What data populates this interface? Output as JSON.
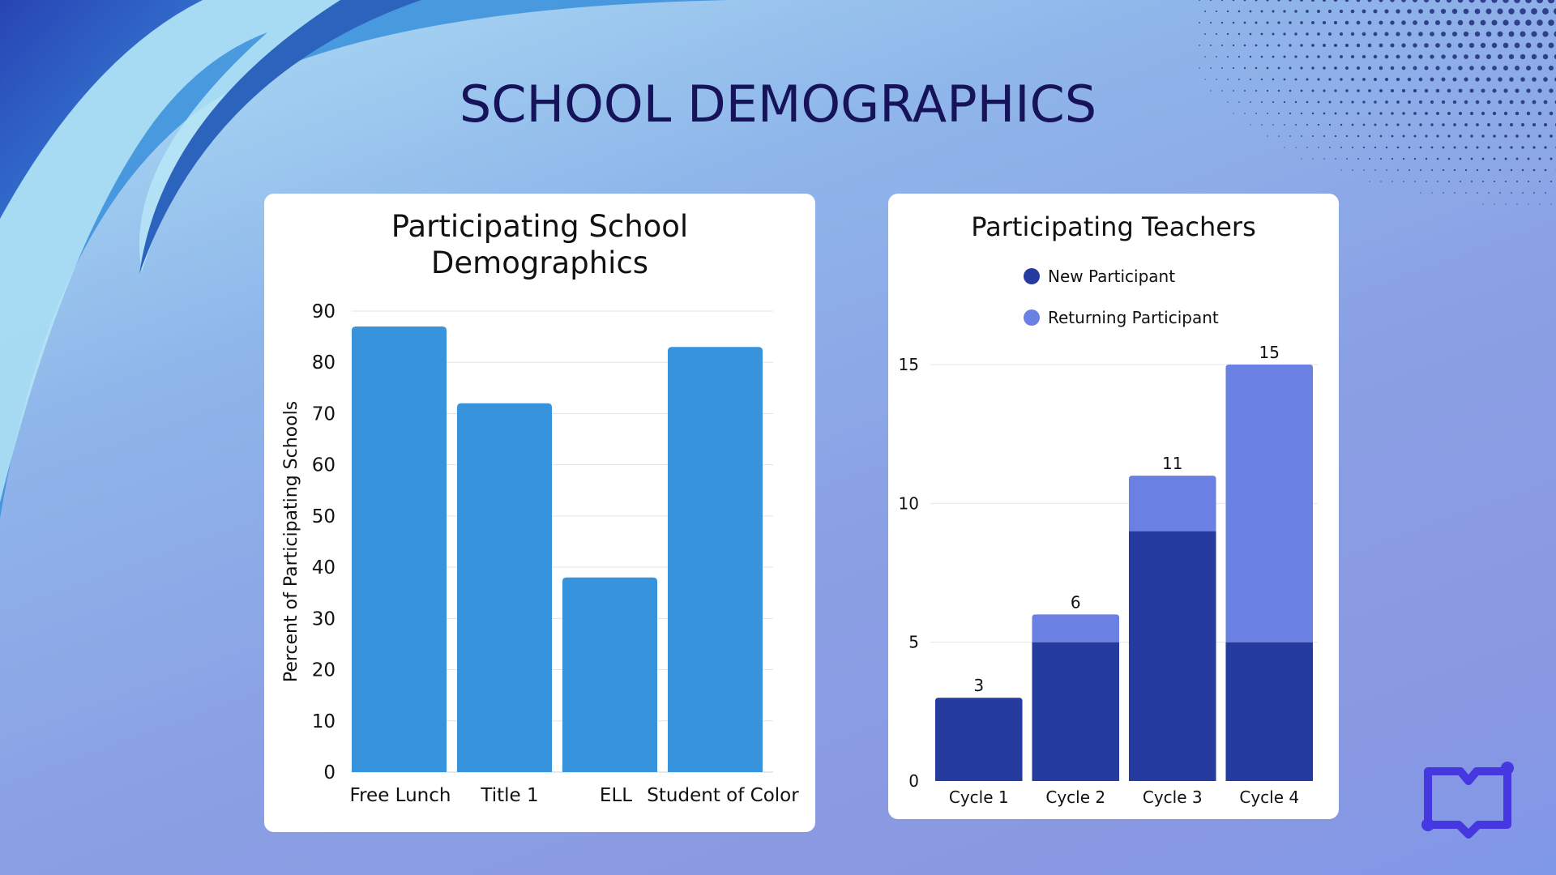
{
  "page": {
    "title": "SCHOOL DEMOGRAPHICS",
    "colors": {
      "title": "#16135a",
      "bar_primary": "#3793dc",
      "new_participant": "#253b9f",
      "returning_participant": "#6a80e2",
      "logo": "#4638e0"
    },
    "logo_icon": "open-book-icon"
  },
  "chart_data": [
    {
      "type": "bar",
      "title_lines": [
        "Participating School",
        "Demographics"
      ],
      "categories": [
        "Free Lunch",
        "Title 1",
        "ELL",
        "Student of Color"
      ],
      "values": [
        87,
        72,
        38,
        83
      ],
      "xlabel": "",
      "ylabel": "Percent of Participating Schools",
      "ylim": [
        0,
        90
      ],
      "yticks": [
        0,
        10,
        20,
        30,
        40,
        50,
        60,
        70,
        80,
        90
      ],
      "grid": true,
      "legend": "none"
    },
    {
      "type": "bar",
      "stacked": true,
      "title": "Participating Teachers",
      "categories": [
        "Cycle 1",
        "Cycle 2",
        "Cycle 3",
        "Cycle 4"
      ],
      "series": [
        {
          "name": "New Participant",
          "values": [
            3,
            5,
            9,
            5
          ]
        },
        {
          "name": "Returning Participant",
          "values": [
            0,
            1,
            2,
            10
          ]
        }
      ],
      "totals": [
        3,
        6,
        11,
        15
      ],
      "xlabel": "",
      "ylabel": "",
      "ylim": [
        0,
        15
      ],
      "yticks": [
        0,
        5,
        10,
        15
      ],
      "grid": true,
      "legend": "top-center"
    }
  ]
}
